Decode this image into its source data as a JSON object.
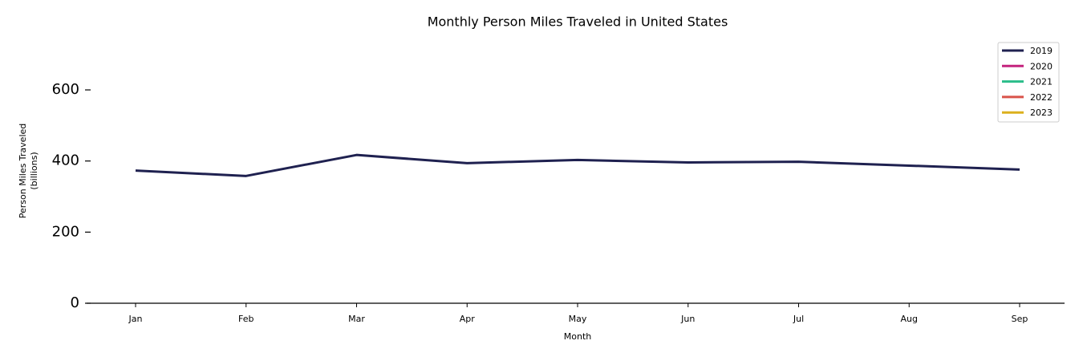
{
  "chart_data": {
    "type": "line",
    "title": "Monthly Person Miles Traveled in United States",
    "xlabel": "Month",
    "ylabel": [
      "Person Miles Traveled",
      "(billions)"
    ],
    "categories": [
      "Jan",
      "Feb",
      "Mar",
      "Apr",
      "May",
      "Jun",
      "Jul",
      "Aug",
      "Sep"
    ],
    "series": [
      {
        "name": "2019",
        "color": "#1f2150",
        "values": [
          373,
          358,
          417,
          394,
          403,
          396,
          398,
          387,
          376
        ]
      },
      {
        "name": "2020",
        "color": "#c4237e",
        "values": [
          null,
          null,
          null,
          null,
          null,
          null,
          null,
          null,
          null
        ]
      },
      {
        "name": "2021",
        "color": "#2bbd8a",
        "values": [
          null,
          null,
          null,
          null,
          null,
          null,
          null,
          null,
          null
        ]
      },
      {
        "name": "2022",
        "color": "#d9534a",
        "values": [
          null,
          null,
          null,
          null,
          null,
          null,
          null,
          null,
          null
        ]
      },
      {
        "name": "2023",
        "color": "#dcb01e",
        "values": [
          null,
          null,
          null,
          null,
          null,
          null,
          null,
          null,
          null
        ]
      }
    ],
    "ylim": [
      0,
      740
    ],
    "yticks": [
      0,
      200,
      400,
      600
    ],
    "legend": "upper right",
    "grid": false
  }
}
